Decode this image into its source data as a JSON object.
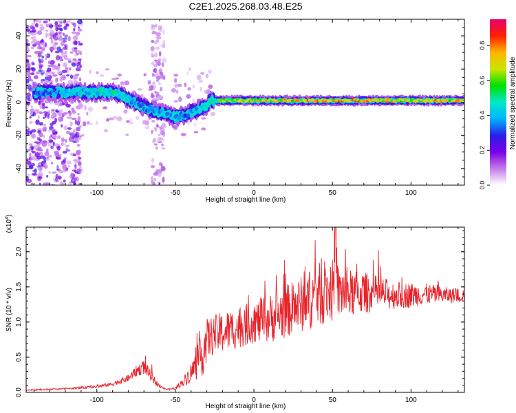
{
  "title": "C2E1.2025.268.03.48.E25",
  "chart_data": [
    {
      "type": "heatmap",
      "xlabel": "Height of straight line (km)",
      "ylabel": "Frequency (Hz)",
      "xlim": [
        -145,
        134
      ],
      "ylim": [
        -50,
        50
      ],
      "xticks": [
        -100,
        -50,
        0,
        50,
        100
      ],
      "xtick_labels": [
        "-100",
        "-50",
        "0",
        "50",
        "100"
      ],
      "yticks": [
        -40,
        -20,
        0,
        20,
        40
      ],
      "ytick_labels": [
        "-40",
        "-20",
        "0",
        "20",
        "40"
      ],
      "colorbar": {
        "label": "Normalized spectral amplitude",
        "range": [
          0,
          0.95
        ],
        "ticks": [
          0,
          0.2,
          0.4,
          0.6,
          0.8
        ],
        "tick_labels": [
          "0.0",
          "0.2",
          "0.4",
          "0.6",
          "0.8"
        ],
        "colormap": [
          "#ffffff",
          "#c47be8",
          "#7a00e6",
          "#2a1ee8",
          "#00b4ff",
          "#00e8c8",
          "#00e000",
          "#c8e600",
          "#ffb400",
          "#ff2000",
          "#e6006e"
        ]
      },
      "ridge": {
        "x": [
          -140,
          -120,
          -100,
          -90,
          -80,
          -70,
          -60,
          -50,
          -45,
          -40,
          -35,
          -30,
          -28,
          -20,
          -10,
          0,
          20,
          40,
          60,
          80,
          100,
          120,
          134
        ],
        "freq": [
          6,
          6,
          6,
          6,
          2,
          -3,
          -6,
          -9,
          -8,
          -6,
          -4,
          -2,
          1,
          1,
          1,
          1,
          1,
          1,
          1,
          1,
          1,
          1,
          1
        ],
        "amplitude": [
          0.35,
          0.45,
          0.5,
          0.55,
          0.45,
          0.4,
          0.45,
          0.45,
          0.4,
          0.4,
          0.45,
          0.5,
          0.6,
          0.65,
          0.7,
          0.75,
          0.8,
          0.85,
          0.8,
          0.8,
          0.75,
          0.8,
          0.75
        ]
      }
    },
    {
      "type": "line",
      "xlabel": "Height of straight line (km)",
      "ylabel": "SNR (10 * v/v)",
      "y_multiplier_label": "(x10^4)",
      "xlim": [
        -145,
        134
      ],
      "ylim": [
        0,
        2.35
      ],
      "xticks": [
        -100,
        -50,
        0,
        50,
        100
      ],
      "xtick_labels": [
        "-100",
        "-50",
        "0",
        "50",
        "100"
      ],
      "yticks": [
        0,
        0.5,
        1.0,
        1.5,
        2.0
      ],
      "ytick_labels": [
        "0.0",
        "0.5",
        "1.0",
        "1.5",
        "2.0"
      ],
      "color": "#e8232a",
      "series": [
        {
          "name": "SNR",
          "x": [
            -145,
            -120,
            -100,
            -90,
            -80,
            -75,
            -70,
            -65,
            -60,
            -55,
            -50,
            -45,
            -40,
            -35,
            -32,
            -30,
            -25,
            -20,
            -10,
            0,
            10,
            20,
            30,
            40,
            50,
            60,
            70,
            80,
            90,
            100,
            110,
            120,
            134
          ],
          "envelope": [
            0.03,
            0.05,
            0.08,
            0.12,
            0.2,
            0.3,
            0.36,
            0.22,
            0.08,
            0.04,
            0.06,
            0.15,
            0.28,
            0.45,
            0.6,
            0.75,
            0.82,
            0.85,
            0.92,
            1.0,
            1.05,
            1.15,
            1.25,
            1.38,
            1.45,
            1.4,
            1.42,
            1.4,
            1.38,
            1.38,
            1.4,
            1.38,
            1.38
          ],
          "spread": [
            0.01,
            0.01,
            0.02,
            0.03,
            0.05,
            0.08,
            0.1,
            0.07,
            0.02,
            0.01,
            0.02,
            0.06,
            0.15,
            0.25,
            0.35,
            0.3,
            0.28,
            0.3,
            0.3,
            0.3,
            0.35,
            0.38,
            0.4,
            0.45,
            0.45,
            0.35,
            0.3,
            0.25,
            0.2,
            0.18,
            0.15,
            0.12,
            0.1
          ],
          "peak": {
            "x": 52,
            "value": 2.35
          }
        }
      ]
    }
  ]
}
